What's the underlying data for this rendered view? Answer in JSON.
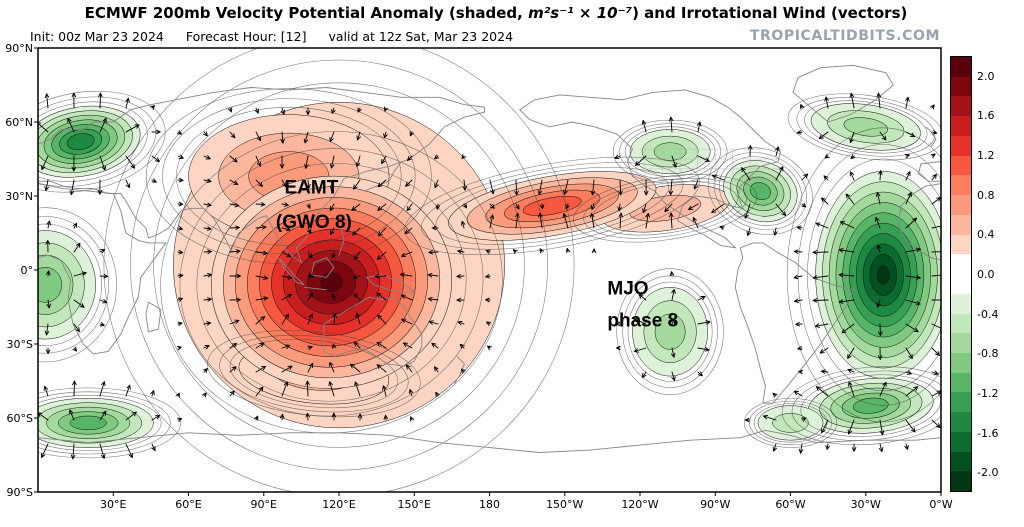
{
  "header": {
    "title_prefix": "ECMWF 200mb Velocity Potential Anomaly (shaded, ",
    "title_math": "m²s⁻¹ × 10⁻⁷",
    "title_suffix": ") and Irrotational Wind (vectors)",
    "init": "Init: 00z Mar 23 2024",
    "forecast_hour": "Forecast Hour: [12]",
    "valid": "valid at 12z Sat, Mar 23 2024",
    "watermark": "TROPICALTIDBITS.COM"
  },
  "chart_data": {
    "type": "heatmap",
    "model": "ECMWF",
    "field": "200mb velocity potential anomaly (shaded) with irrotational wind vectors",
    "units": "m2 s-1 x 10^-7",
    "init_time": "00z Mar 23 2024",
    "forecast_hour": 12,
    "valid_time": "12z Sat, Mar 23 2024",
    "lon_range": [
      0,
      360
    ],
    "lat_range": [
      -90,
      90
    ],
    "x_axis": {
      "label": "longitude",
      "ticks": [
        "30°E",
        "60°E",
        "90°E",
        "120°E",
        "150°E",
        "180",
        "150°W",
        "120°W",
        "90°W",
        "60°W",
        "30°W",
        "0°W"
      ],
      "lons": [
        30,
        60,
        90,
        120,
        150,
        180,
        210,
        240,
        270,
        300,
        330,
        360
      ]
    },
    "y_axis": {
      "label": "latitude",
      "ticks": [
        "90°N",
        "60°N",
        "30°N",
        "0°",
        "30°S",
        "60°S",
        "90°S"
      ],
      "lats": [
        90,
        60,
        30,
        0,
        -30,
        -60,
        -90
      ]
    },
    "colorbar": {
      "ticks": [
        "2.0",
        "1.6",
        "1.2",
        "0.8",
        "0.4",
        "0.0",
        "-0.4",
        "-0.8",
        "-1.2",
        "-1.6",
        "-2.0"
      ],
      "segments_top_to_bottom": [
        "#5a000c",
        "#7d0510",
        "#a31218",
        "#c81e1e",
        "#e6302a",
        "#f65940",
        "#fb7d5d",
        "#fc9b7c",
        "#fcb89e",
        "#fdd5c2",
        "#ffffff",
        "#ffffff",
        "#ddf2d8",
        "#c2e7ba",
        "#a3d99c",
        "#7fca80",
        "#57b567",
        "#37a055",
        "#1f8843",
        "#0c6b2f",
        "#024f20",
        "#003814"
      ]
    },
    "palette": {
      "positive": [
        "#fdd5c2",
        "#fcb89e",
        "#fc9b7c",
        "#fb7d5d",
        "#f65940",
        "#e6302a",
        "#c81e1e",
        "#a31218",
        "#7d0510",
        "#5a000c"
      ],
      "negative": [
        "#ddf2d8",
        "#c2e7ba",
        "#a3d99c",
        "#7fca80",
        "#57b567",
        "#37a055",
        "#1f8843",
        "#0c6b2f",
        "#024f20",
        "#003814"
      ]
    },
    "anomaly_features": [
      {
        "name": "broad-positive-envelope",
        "sign": 1,
        "lon": 120,
        "lat": 2,
        "peak": 0.4,
        "rx_deg": 66,
        "ry_deg": 66,
        "rot": 0
      },
      {
        "name": "asia-positive-lobe",
        "sign": 1,
        "lon": 100,
        "lat": 38,
        "peak": 0.8,
        "rx_deg": 40,
        "ry_deg": 25,
        "rot": 0
      },
      {
        "name": "south-indian-positive-lobe",
        "sign": 1,
        "lon": 110,
        "lat": -42,
        "peak": 0.6,
        "rx_deg": 30,
        "ry_deg": 12,
        "rot": 6
      },
      {
        "name": "east-pacific-positive-band",
        "sign": 1,
        "lon": 250,
        "lat": 25,
        "peak": 0.6,
        "rx_deg": 26,
        "ry_deg": 9,
        "rot": -8
      },
      {
        "name": "north-pacific-positive-band",
        "sign": 1,
        "lon": 205,
        "lat": 26,
        "peak": 1.2,
        "rx_deg": 42,
        "ry_deg": 12,
        "rot": -10
      },
      {
        "name": "maritime-continent-positive-max",
        "sign": 1,
        "lon": 117,
        "lat": -5,
        "peak": 2.0,
        "rx_deg": 48,
        "ry_deg": 43,
        "rot": -5
      },
      {
        "name": "europe-negative",
        "sign": -1,
        "lon": 17,
        "lat": 52,
        "peak": 1.6,
        "rx_deg": 24,
        "ry_deg": 14,
        "rot": -10
      },
      {
        "name": "africa-equator-negative",
        "sign": -1,
        "lon": 3,
        "lat": -6,
        "peak": 1.0,
        "rx_deg": 20,
        "ry_deg": 22,
        "rot": 0
      },
      {
        "name": "south-atlantic-left-negative",
        "sign": -1,
        "lon": 20,
        "lat": -62,
        "peak": 1.2,
        "rx_deg": 26,
        "ry_deg": 10,
        "rot": 0
      },
      {
        "name": "central-pacific-south-negative",
        "sign": -1,
        "lon": 252,
        "lat": -25,
        "peak": 0.8,
        "rx_deg": 15,
        "ry_deg": 18,
        "rot": 0
      },
      {
        "name": "west-north-america-negative",
        "sign": -1,
        "lon": 252,
        "lat": 48,
        "peak": 0.8,
        "rx_deg": 16,
        "ry_deg": 9,
        "rot": 0
      },
      {
        "name": "east-north-america-negative",
        "sign": -1,
        "lon": 288,
        "lat": 32,
        "peak": 1.2,
        "rx_deg": 15,
        "ry_deg": 12,
        "rot": 20
      },
      {
        "name": "atlantic-negative-max",
        "sign": -1,
        "lon": 337,
        "lat": -2,
        "peak": 2.0,
        "rx_deg": 27,
        "ry_deg": 42,
        "rot": 0
      },
      {
        "name": "north-atlantic-top-negative",
        "sign": -1,
        "lon": 330,
        "lat": 58,
        "peak": 0.8,
        "rx_deg": 22,
        "ry_deg": 9,
        "rot": 8
      },
      {
        "name": "south-atlantic-right-negative",
        "sign": -1,
        "lon": 332,
        "lat": -55,
        "peak": 1.2,
        "rx_deg": 25,
        "ry_deg": 11,
        "rot": -5
      },
      {
        "name": "southeast-pacific-negative",
        "sign": -1,
        "lon": 300,
        "lat": -62,
        "peak": 0.6,
        "rx_deg": 13,
        "ry_deg": 7,
        "rot": 0
      }
    ],
    "annotations": [
      {
        "id": "eamt-label",
        "anchor": "middle",
        "lines": [
          {
            "text": "EAMT",
            "lon": 109,
            "lat": 31
          },
          {
            "text": "(GWO 8)",
            "lon": 110,
            "lat": 17
          }
        ]
      },
      {
        "id": "mjo-label",
        "anchor": "start",
        "lines": [
          {
            "text": "MJO",
            "lon": 227,
            "lat": -10
          },
          {
            "text": "phase 8",
            "lon": 227,
            "lat": -23
          }
        ]
      }
    ]
  }
}
